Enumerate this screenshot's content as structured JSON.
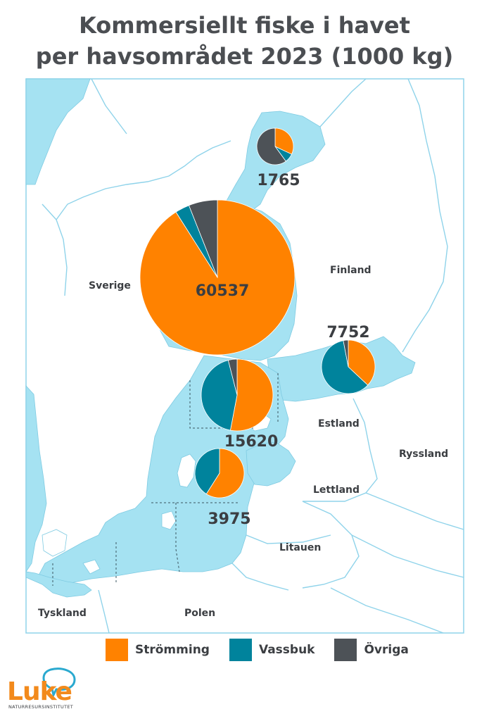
{
  "title": {
    "line1": "Kommersiellt fiske i havet",
    "line2": "per havsområdet 2023 (1000 kg)"
  },
  "colors": {
    "stromming": "#ff8200",
    "vassbuk": "#00839c",
    "ovriga": "#4d5257",
    "sea": "#a5e2f2",
    "border": "#8fd3ea"
  },
  "countries": {
    "sverige": "Sverige",
    "finland": "Finland",
    "estland": "Estland",
    "ryssland": "Ryssland",
    "lettland": "Lettland",
    "litauen": "Litauen",
    "tyskland": "Tyskland",
    "polen": "Polen"
  },
  "chart_data": {
    "type": "pie",
    "legend": [
      "Strömming",
      "Vassbuk",
      "Övriga"
    ],
    "areas": [
      {
        "total": "1765",
        "shares": [
          0.32,
          0.08,
          0.6
        ]
      },
      {
        "total": "60537",
        "shares": [
          0.91,
          0.03,
          0.06
        ]
      },
      {
        "total": "7752",
        "shares": [
          0.37,
          0.6,
          0.03
        ]
      },
      {
        "total": "15620",
        "shares": [
          0.53,
          0.43,
          0.04
        ]
      },
      {
        "total": "3975",
        "shares": [
          0.59,
          0.41,
          0.0
        ]
      }
    ]
  },
  "legend": {
    "stromming": "Strömming",
    "vassbuk": "Vassbuk",
    "ovriga": "Övriga"
  },
  "logo": {
    "name": "Luke",
    "subtitle": "NATURRESURSINSTITUTET"
  }
}
